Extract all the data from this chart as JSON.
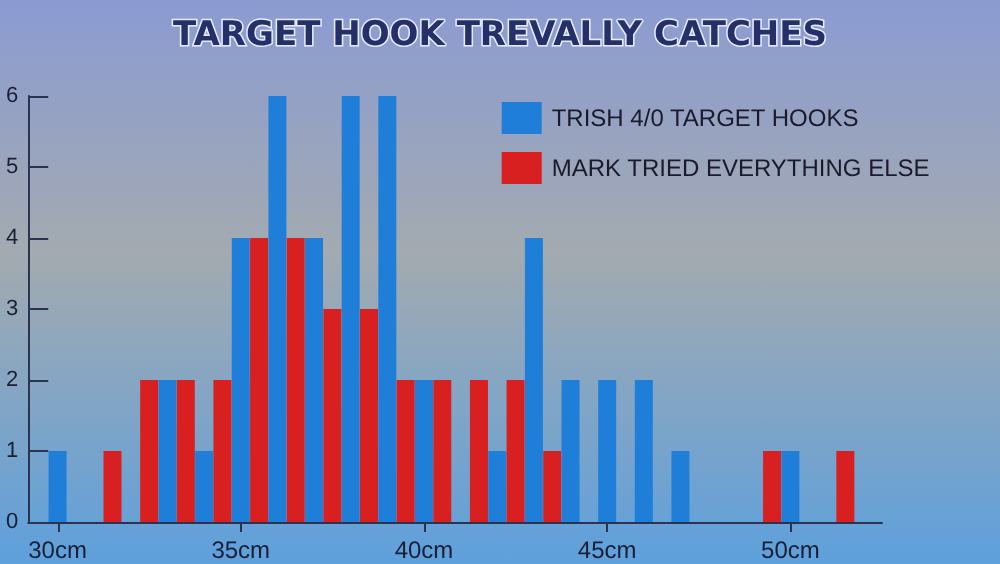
{
  "chart_data": {
    "type": "bar",
    "title": "TARGET HOOK TREVALLY CATCHES",
    "series": [
      {
        "name": "TRISH 4/0 TARGET HOOKS",
        "color": "#1f7fd8",
        "x": [
          30,
          33,
          34,
          35,
          36,
          37,
          38,
          39,
          40,
          42,
          43,
          44,
          45,
          46,
          47,
          50
        ],
        "values": [
          1,
          2,
          1,
          4,
          6,
          4,
          6,
          6,
          2,
          1,
          4,
          2,
          2,
          2,
          1,
          1
        ]
      },
      {
        "name": "MARK TRIED EVERYTHING ELSE",
        "color": "#d82020",
        "x": [
          31.5,
          32.5,
          33.5,
          34.5,
          35.5,
          36.5,
          37.5,
          38.5,
          39.5,
          40.5,
          41.5,
          42.5,
          43.5,
          49.5,
          51.5
        ],
        "values": [
          1,
          2,
          2,
          2,
          4,
          4,
          3,
          3,
          2,
          2,
          2,
          2,
          1,
          1,
          1
        ]
      }
    ],
    "xlim": [
      29.2,
      52.5
    ],
    "xticks": [
      {
        "value": 30,
        "label": "30cm"
      },
      {
        "value": 35,
        "label": "35cm"
      },
      {
        "value": 40,
        "label": "40cm"
      },
      {
        "value": 45,
        "label": "45cm"
      },
      {
        "value": 50,
        "label": "50cm"
      }
    ],
    "ylim": [
      0,
      6
    ],
    "yticks": [
      0,
      1,
      2,
      3,
      4,
      5,
      6
    ],
    "grid": false,
    "legend": "top right"
  }
}
